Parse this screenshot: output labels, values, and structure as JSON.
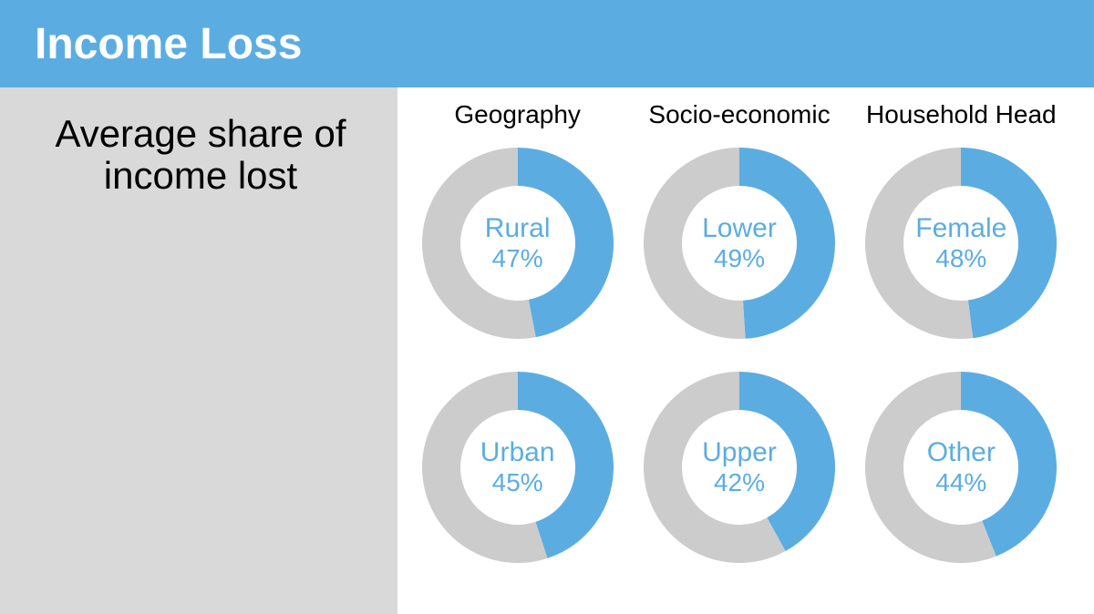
{
  "header": {
    "title": "Income Loss",
    "background_color": "#5bade1",
    "title_color": "#ffffff",
    "title_fontsize": 48
  },
  "side": {
    "background_color": "#d9d9d9",
    "text": "Average share of income lost",
    "text_color": "#000000",
    "text_fontsize": 42
  },
  "columns": [
    {
      "label": "Geography"
    },
    {
      "label": "Socio-economic"
    },
    {
      "label": "Household Head"
    }
  ],
  "column_header_fontsize": 28,
  "column_header_color": "#000000",
  "donut": {
    "outer_diameter": 210,
    "ring_thickness": 42,
    "fill_color": "#5bade1",
    "remainder_color": "#cccccc",
    "label_color": "#5bade1",
    "label_fontsize": 30,
    "value_fontsize": 28,
    "start_angle_deg": 0
  },
  "cells": [
    {
      "label": "Rural",
      "value": 47,
      "value_text": "47%"
    },
    {
      "label": "Lower",
      "value": 49,
      "value_text": "49%"
    },
    {
      "label": "Female",
      "value": 48,
      "value_text": "48%"
    },
    {
      "label": "Urban",
      "value": 45,
      "value_text": "45%"
    },
    {
      "label": "Upper",
      "value": 42,
      "value_text": "42%"
    },
    {
      "label": "Other",
      "value": 44,
      "value_text": "44%"
    }
  ],
  "background_color": "#ffffff",
  "grid_row_height": 246
}
